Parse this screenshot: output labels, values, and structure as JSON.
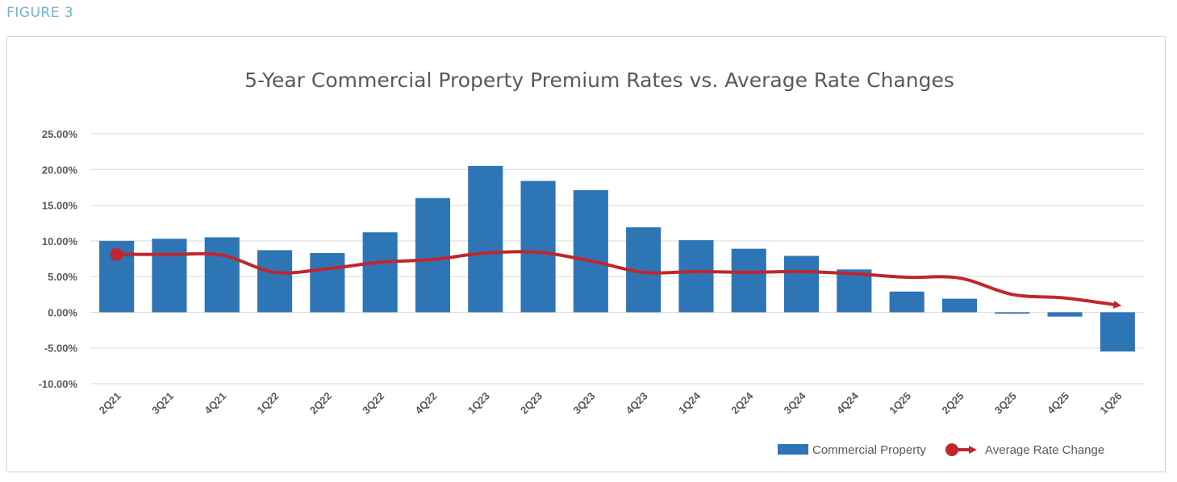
{
  "figure_label": "FIGURE 3",
  "chart_data": {
    "type": "bar",
    "title": "5-Year Commercial Property Premium Rates vs. Average Rate Changes",
    "categories": [
      "2Q21",
      "3Q21",
      "4Q21",
      "1Q22",
      "2Q22",
      "3Q22",
      "4Q22",
      "1Q23",
      "2Q23",
      "3Q23",
      "4Q23",
      "1Q24",
      "2Q24",
      "3Q24",
      "4Q24",
      "1Q25",
      "2Q25",
      "3Q25",
      "4Q25",
      "1Q26"
    ],
    "y_ticks": [
      "25.00%",
      "20.00%",
      "15.00%",
      "10.00%",
      "5.00%",
      "0.00%",
      "-5.00%",
      "-10.00%"
    ],
    "ylim": [
      -10,
      25
    ],
    "y_tick_values": [
      25,
      20,
      15,
      10,
      5,
      0,
      -5,
      -10
    ],
    "grid": true,
    "legend_position": "bottom-right",
    "series": [
      {
        "name": "Commercial Property",
        "type": "bar",
        "color": "#2e75b6",
        "values": [
          10.0,
          10.3,
          10.5,
          8.7,
          8.3,
          11.2,
          16.0,
          20.5,
          18.4,
          17.1,
          11.9,
          10.1,
          8.9,
          7.9,
          6.0,
          2.9,
          1.9,
          -0.2,
          -0.6,
          -5.5
        ]
      },
      {
        "name": "Average Rate Change",
        "type": "line",
        "color": "#c0262d",
        "values": [
          8.1,
          8.1,
          8.0,
          5.6,
          6.1,
          7.0,
          7.4,
          8.3,
          8.4,
          7.2,
          5.6,
          5.7,
          5.6,
          5.7,
          5.4,
          4.9,
          4.8,
          2.5,
          2.0,
          1.0
        ]
      }
    ]
  }
}
